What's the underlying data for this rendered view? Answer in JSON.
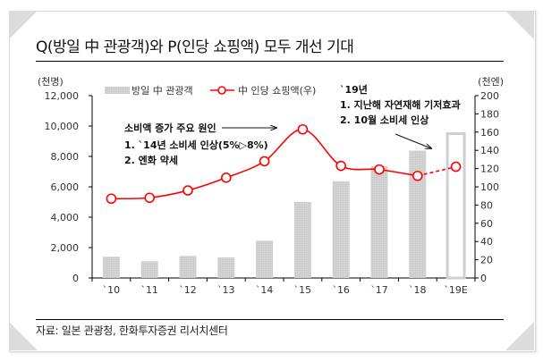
{
  "title": "Q(방일 中 관광객)와 P(인당 쇼핑액) 모두 개선 기대",
  "source": "자료: 일본 관광청, 한화투자증권 리서치센터",
  "chart_data": {
    "type": "bar",
    "title": "Q(방일 中 관광객)와 P(인당 쇼핑액) 모두 개선 기대",
    "categories": [
      "`10",
      "`11",
      "`12",
      "`13",
      "`14",
      "`15",
      "`16",
      "`17",
      "`18",
      "`19E"
    ],
    "left_axis": {
      "unit_label": "(천명)",
      "ylim": [
        0,
        12000
      ],
      "ticks": [
        "0",
        "2,000",
        "4,000",
        "6,000",
        "8,000",
        "10,000",
        "12,000"
      ]
    },
    "right_axis": {
      "unit_label": "(천엔)",
      "ylim": [
        0,
        200
      ],
      "ticks": [
        "0",
        "20",
        "40",
        "60",
        "80",
        "100",
        "120",
        "140",
        "160",
        "180",
        "200"
      ]
    },
    "series": [
      {
        "name": "방일 中 관광객",
        "type": "bar",
        "axis": "left",
        "color": "#cfcfcf",
        "values": [
          1400,
          1100,
          1450,
          1350,
          2450,
          5000,
          6370,
          7350,
          8380,
          9500
        ],
        "estimated_last": true
      },
      {
        "name": "中 인당 쇼핑액(우)",
        "type": "line",
        "axis": "right",
        "color": "#ff0000",
        "values": [
          87,
          88,
          96,
          110,
          128,
          163,
          123,
          119,
          112,
          122
        ],
        "estimated_last": true
      }
    ],
    "legend_position": "top",
    "grid": false,
    "annotations": [
      {
        "id": "left",
        "lines": [
          "소비액 증가 주요 원인",
          "1. `14년 소비세 인상(5%▷8%)",
          "2. 엔화 약세"
        ]
      },
      {
        "id": "right",
        "lines": [
          "`19년",
          "1. 지난해 자연재해 기저효과",
          "2. 10월 소비세 인상"
        ]
      }
    ]
  }
}
